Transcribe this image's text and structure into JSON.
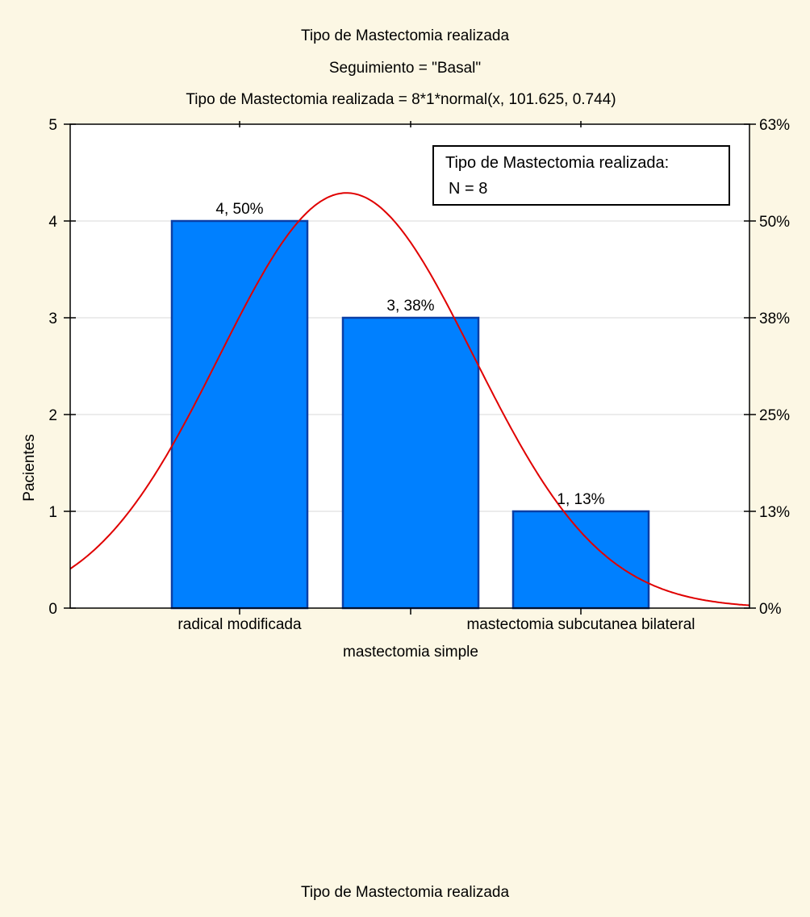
{
  "chart_data": {
    "type": "bar",
    "title_lines": [
      "Tipo de Mastectomia realizada",
      "Seguimiento = \"Basal\"",
      "Tipo de Mastectomia realizada = 8*1*normal(x, 101.625, 0.744)"
    ],
    "categories": [
      "radical modificada",
      "mastectomia simple",
      "mastectomia subcutanea bilateral"
    ],
    "values": [
      4,
      3,
      1
    ],
    "bar_labels": [
      "4, 50%",
      "3, 38%",
      "1, 13%"
    ],
    "xlabel": "Tipo de Mastectomia realizada",
    "ylabel": "Pacientes",
    "ylim": [
      0,
      5
    ],
    "y_ticks": [
      "0",
      "1",
      "2",
      "3",
      "4",
      "5"
    ],
    "y2_ticks": [
      "0%",
      "13%",
      "25%",
      "38%",
      "50%",
      "63%"
    ],
    "legend": {
      "title": "Tipo de Mastectomia realizada:",
      "text": "N = 8",
      "placement": "top-right"
    },
    "fit_curve": {
      "type": "normal",
      "n": 8,
      "mean": 101.625,
      "sd": 0.744,
      "category_positions": [
        101,
        102,
        103
      ]
    },
    "grid": true,
    "colors": {
      "bar_fill": "#0080ff",
      "bar_stroke": "#0b3fa6",
      "curve": "#e00000",
      "background": "#fcf7e4",
      "plot_background": "#ffffff",
      "grid": "#d9d9d9"
    }
  }
}
